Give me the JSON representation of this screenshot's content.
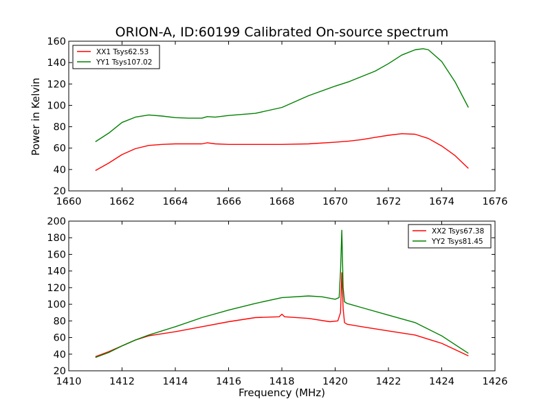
{
  "figure": {
    "title": "ORION-A, ID:60199 Calibrated On-source spectrum",
    "ylabel": "Power in Kelvin",
    "xlabel": "Frequency (MHz)"
  },
  "chart_data": [
    {
      "type": "line",
      "xlim": [
        1660,
        1676
      ],
      "ylim": [
        20,
        160
      ],
      "xticks": [
        1660,
        1662,
        1664,
        1666,
        1668,
        1670,
        1672,
        1674,
        1676
      ],
      "yticks": [
        20,
        40,
        60,
        80,
        100,
        120,
        140,
        160
      ],
      "grid": false,
      "legend_position": "top-left",
      "series": [
        {
          "name": "XX1 Tsys62.53",
          "color": "#ff0000",
          "x": [
            1661.0,
            1661.5,
            1662.0,
            1662.5,
            1663.0,
            1663.5,
            1664.0,
            1664.5,
            1665.0,
            1665.2,
            1665.5,
            1666.0,
            1667.0,
            1668.0,
            1669.0,
            1670.0,
            1670.5,
            1671.0,
            1671.5,
            1672.0,
            1672.5,
            1673.0,
            1673.5,
            1674.0,
            1674.5,
            1675.0
          ],
          "y": [
            39,
            46,
            54,
            59.5,
            62.5,
            63.5,
            64,
            64,
            64,
            65,
            64,
            63.5,
            63.5,
            63.5,
            64,
            65.5,
            66.5,
            68,
            70,
            72,
            73.5,
            73,
            69,
            62,
            53,
            41
          ]
        },
        {
          "name": "YY1 Tsys107.02",
          "color": "#008000",
          "x": [
            1661.0,
            1661.5,
            1662.0,
            1662.5,
            1663.0,
            1663.5,
            1664.0,
            1664.5,
            1665.0,
            1665.2,
            1665.5,
            1666.0,
            1667.0,
            1668.0,
            1669.0,
            1670.0,
            1670.5,
            1671.0,
            1671.5,
            1672.0,
            1672.5,
            1673.0,
            1673.3,
            1673.5,
            1674.0,
            1674.5,
            1675.0
          ],
          "y": [
            66,
            74,
            84,
            89,
            91,
            90,
            88.5,
            88,
            88,
            89.5,
            89,
            90.5,
            92.5,
            98,
            109,
            118,
            122,
            127,
            132,
            139,
            147,
            152,
            153,
            152,
            141,
            122,
            98
          ]
        }
      ]
    },
    {
      "type": "line",
      "xlim": [
        1410,
        1426
      ],
      "ylim": [
        20,
        200
      ],
      "xticks": [
        1410,
        1412,
        1414,
        1416,
        1418,
        1420,
        1422,
        1424,
        1426
      ],
      "yticks": [
        20,
        40,
        60,
        80,
        100,
        120,
        140,
        160,
        180,
        200
      ],
      "grid": false,
      "legend_position": "top-right",
      "series": [
        {
          "name": "XX2 Tsys67.38",
          "color": "#ff0000",
          "x": [
            1411.0,
            1411.5,
            1412.0,
            1412.5,
            1413.0,
            1414.0,
            1415.0,
            1416.0,
            1417.0,
            1417.9,
            1418.0,
            1418.1,
            1419.0,
            1419.8,
            1420.1,
            1420.2,
            1420.25,
            1420.3,
            1420.35,
            1420.45,
            1421.0,
            1422.0,
            1423.0,
            1424.0,
            1425.0
          ],
          "y": [
            37,
            43,
            50,
            57,
            62,
            67,
            73,
            79,
            84,
            85,
            88,
            85,
            83,
            79,
            80,
            90,
            138,
            95,
            78,
            76,
            73,
            68,
            63,
            53,
            38
          ]
        },
        {
          "name": "YY2 Tsys81.45",
          "color": "#008000",
          "x": [
            1411.0,
            1411.5,
            1412.0,
            1412.5,
            1413.0,
            1414.0,
            1415.0,
            1416.0,
            1417.0,
            1418.0,
            1419.0,
            1419.5,
            1420.0,
            1420.15,
            1420.2,
            1420.25,
            1420.3,
            1420.35,
            1420.45,
            1421.0,
            1422.0,
            1423.0,
            1424.0,
            1425.0
          ],
          "y": [
            36,
            42,
            50,
            57,
            63,
            73,
            84,
            93,
            101,
            108,
            110,
            109,
            106,
            108,
            140,
            189,
            120,
            103,
            101,
            96,
            87,
            78,
            62,
            41
          ]
        }
      ]
    }
  ]
}
